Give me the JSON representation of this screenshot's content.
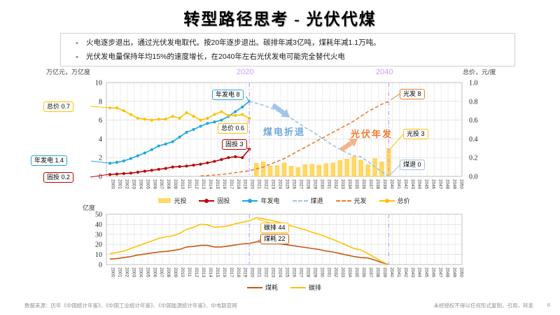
{
  "slide": {
    "title": "转型路径思考 - 光伏代煤",
    "page_number": "6",
    "footer_left": "数据来源：历年《中国统计年鉴》、《中国工业统计年鉴》、《中国能源统计年鉴》、中电联官网",
    "footer_right": "未经授权不得以任何形式复制，引用，转发"
  },
  "bullets": [
    "火电逐步退出，通过光伏发电取代。按20年逐步退出。碳排年减3亿吨，煤耗年减1.1万吨。",
    "光伏发电量保持年均15%的速度增长，在2040年左右光伏发电可能完全替代火电"
  ],
  "colors": {
    "annual_gen_blue": "#1FA7DF",
    "fixed_invest_red": "#C00000",
    "total_price_gold": "#FFC000",
    "pv_invest_bar": "#FFD966",
    "pv_gen_orange": "#ED7D31",
    "coal_retire_lightblue": "#9DC3E6",
    "milestone_violet": "#CC99FF",
    "coal_consumption_dark_orange": "#C55A11",
    "carbon_emission_gold": "#FFC000"
  },
  "chart_data": [
    {
      "type": "combo-bar-line",
      "ylabel_left": "万亿元，万亿度",
      "ylabel_right": "总价，元/度",
      "ylim_left": [
        0,
        10
      ],
      "ylim_right": [
        0,
        1.0
      ],
      "yticks_left": [
        0,
        2,
        4,
        6,
        8,
        10
      ],
      "yticks_right": [
        "0.0",
        "0.2",
        "0.4",
        "0.6",
        "0.8",
        "1.0"
      ],
      "x_start": 2000,
      "x_end": 2050,
      "vlines": [
        {
          "year": 2020,
          "label": "2020"
        },
        {
          "year": 2040,
          "label": "2040"
        }
      ],
      "series": [
        {
          "id": "pv-invest-bars",
          "name": "光投",
          "style": "bar",
          "axis": "left",
          "color": "#FFD966",
          "x0": 2021,
          "values": [
            1.4,
            1.55,
            1.1,
            1.15,
            1.45,
            1.1,
            0.95,
            1.25,
            1.3,
            1.2,
            1.35,
            1.45,
            1.7,
            1.85,
            2.1,
            1.75,
            1.25,
            1.9,
            1.55,
            3.0
          ]
        },
        {
          "id": "fixed-invest-line",
          "name": "固投",
          "style": "dot",
          "axis": "left",
          "color": "#C00000",
          "x0": 2000,
          "values": [
            0.2,
            0.25,
            0.3,
            0.35,
            0.45,
            0.55,
            0.65,
            0.75,
            0.85,
            1.0,
            1.05,
            1.1,
            1.2,
            1.3,
            1.45,
            1.6,
            1.8,
            2.0,
            2.1,
            2.0,
            2.9
          ]
        },
        {
          "id": "annual-gen-line",
          "name": "年发电",
          "style": "dot",
          "axis": "left",
          "color": "#1FA7DF",
          "x0": 2000,
          "values": [
            1.4,
            1.5,
            1.65,
            1.9,
            2.2,
            2.5,
            2.85,
            3.25,
            3.45,
            3.7,
            4.2,
            4.7,
            5.0,
            5.35,
            5.65,
            5.8,
            6.0,
            6.4,
            6.9,
            7.4,
            8.0
          ]
        },
        {
          "id": "coal-retire-line",
          "name": "煤退",
          "style": "dash",
          "axis": "left",
          "color": "#9DC3E6",
          "x0": 2020,
          "values": [
            8.0,
            7.8,
            7.6,
            7.3,
            7.0,
            6.6,
            6.2,
            5.7,
            5.2,
            4.8,
            4.3,
            3.8,
            3.3,
            2.9,
            2.5,
            2.2,
            2.1,
            1.6,
            1.0,
            0.5,
            0.0
          ]
        },
        {
          "id": "pv-gen-line",
          "name": "光发",
          "style": "dash",
          "axis": "left",
          "color": "#ED7D31",
          "x0": 2013,
          "values": [
            0.05,
            0.1,
            0.15,
            0.2,
            0.3,
            0.4,
            0.5,
            0.6,
            0.8,
            1.0,
            1.3,
            1.6,
            1.9,
            2.3,
            2.7,
            3.1,
            3.5,
            3.9,
            4.3,
            4.7,
            5.1,
            5.5,
            5.9,
            6.4,
            6.9,
            7.3,
            7.7,
            8.0
          ]
        },
        {
          "id": "total-price-line",
          "name": "总价",
          "style": "dot",
          "axis": "right",
          "color": "#FFC000",
          "x0": 2000,
          "values": [
            0.73,
            0.73,
            0.7,
            0.66,
            0.62,
            0.61,
            0.6,
            0.61,
            0.61,
            0.64,
            0.62,
            0.68,
            0.64,
            0.6,
            0.62,
            0.66,
            0.69,
            0.65,
            0.65,
            0.66,
            0.62
          ]
        }
      ],
      "callouts": {
        "zongjia_left": "总价 0.7",
        "nianfadian_left": "年发电 1.4",
        "gutou_left": "固投 0.2",
        "nianfadian_2020": "年发电 8",
        "zongjia_2020": "总价 0.6",
        "gutou_2020": "固投 3",
        "guangfa_2040": "光发 8",
        "guangtou_2040": "光投 3",
        "meitui_2040": "煤退 0"
      },
      "annotations": {
        "coal_retreat": "煤电折退",
        "pv_annual": "光伏年发"
      }
    },
    {
      "type": "line",
      "ylabel": "亿度",
      "ylim": [
        0,
        50
      ],
      "yticks": [
        0,
        10,
        20,
        30,
        40,
        50
      ],
      "x_start": 2000,
      "x_end": 2050,
      "vlines": [
        {
          "year": 2020
        },
        {
          "year": 2040
        }
      ],
      "series": [
        {
          "id": "coal-consumption-line",
          "name": "煤耗",
          "style": "line",
          "color": "#C55A11",
          "x0": 2000,
          "values": [
            5.5,
            6,
            7,
            8,
            9.5,
            10.5,
            11.5,
            12.5,
            13,
            14,
            15,
            17.5,
            18,
            19,
            19,
            17.5,
            17.5,
            18.5,
            19.5,
            20.5,
            21,
            22.5,
            22.5,
            22,
            21,
            20,
            19,
            18,
            17,
            16,
            15,
            13.5,
            12.5,
            11,
            9.5,
            8,
            7,
            6.5,
            4.5,
            2,
            0
          ]
        },
        {
          "id": "carbon-emission-line",
          "name": "碳排",
          "style": "line",
          "color": "#FFC000",
          "x0": 2000,
          "values": [
            11,
            12,
            13.5,
            16,
            18.5,
            21,
            23.5,
            26,
            27.5,
            28.5,
            31,
            35,
            37,
            40,
            39.5,
            37,
            37.5,
            38.5,
            40.5,
            42,
            43.5,
            46.5,
            45.5,
            44,
            42.5,
            40.5,
            38.5,
            36.5,
            34.5,
            32,
            30,
            27.5,
            25,
            22,
            19,
            16,
            14.5,
            11,
            7,
            3,
            0
          ]
        }
      ],
      "callouts": {
        "tanpai": "碳排 44",
        "meihao": "煤耗 22"
      }
    }
  ]
}
